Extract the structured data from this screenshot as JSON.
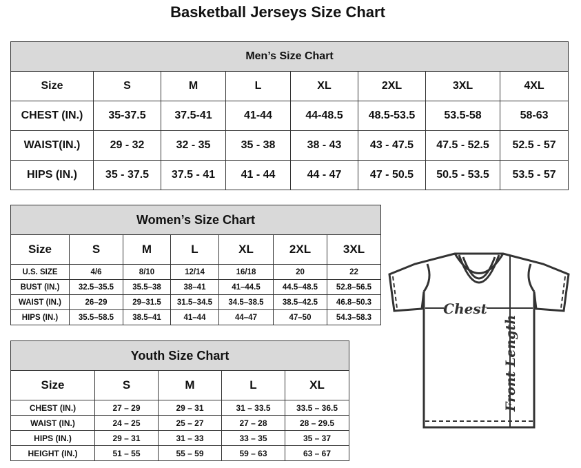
{
  "title": "Basketball Jerseys Size Chart",
  "men": {
    "header": "Men’s Size Chart",
    "rows": [
      [
        "Size",
        "S",
        "M",
        "L",
        "XL",
        "2XL",
        "3XL",
        "4XL"
      ],
      [
        "CHEST (IN.)",
        "35-37.5",
        "37.5-41",
        "41-44",
        "44-48.5",
        "48.5-53.5",
        "53.5-58",
        "58-63"
      ],
      [
        "WAIST(IN.)",
        "29 - 32",
        "32 - 35",
        "35 - 38",
        "38 - 43",
        "43 - 47.5",
        "47.5 - 52.5",
        "52.5 - 57"
      ],
      [
        "HIPS (IN.)",
        "35 - 37.5",
        "37.5 - 41",
        "41 - 44",
        "44 - 47",
        "47 - 50.5",
        "50.5 - 53.5",
        "53.5 - 57"
      ]
    ]
  },
  "women": {
    "header": "Women’s Size Chart",
    "rows": [
      [
        "Size",
        "S",
        "M",
        "L",
        "XL",
        "2XL",
        "3XL"
      ],
      [
        "U.S.  SIZE",
        "4/6",
        "8/10",
        "12/14",
        "16/18",
        "20",
        "22"
      ],
      [
        "BUST  (IN.)",
        "32.5–35.5",
        "35.5–38",
        "38–41",
        "41–44.5",
        "44.5–48.5",
        "52.8–56.5"
      ],
      [
        "WAIST  (IN.)",
        "26–29",
        "29–31.5",
        "31.5–34.5",
        "34.5–38.5",
        "38.5–42.5",
        "46.8–50.3"
      ],
      [
        "HIPS  (IN.)",
        "35.5–58.5",
        "38.5–41",
        "41–44",
        "44–47",
        "47–50",
        "54.3–58.3"
      ]
    ]
  },
  "youth": {
    "header": "Youth Size Chart",
    "rows": [
      [
        "Size",
        "S",
        "M",
        "L",
        "XL"
      ],
      [
        "CHEST  (IN.)",
        "27  –  29",
        "29  –  31",
        "31  –  33.5",
        "33.5  –  36.5"
      ],
      [
        "WAIST  (IN.)",
        "24  –  25",
        "25  –  27",
        "27  –  28",
        "28  –  29.5"
      ],
      [
        "HIPS  (IN.)",
        "29  –  31",
        "31  –  33",
        "33  –  35",
        "35  –  37"
      ],
      [
        "HEIGHT  (IN.)",
        "51  –  55",
        "55  –  59",
        "59  –  63",
        "63  –  67"
      ]
    ]
  },
  "diagram": {
    "chest_label": "Chest",
    "length_label": "Front Length"
  }
}
